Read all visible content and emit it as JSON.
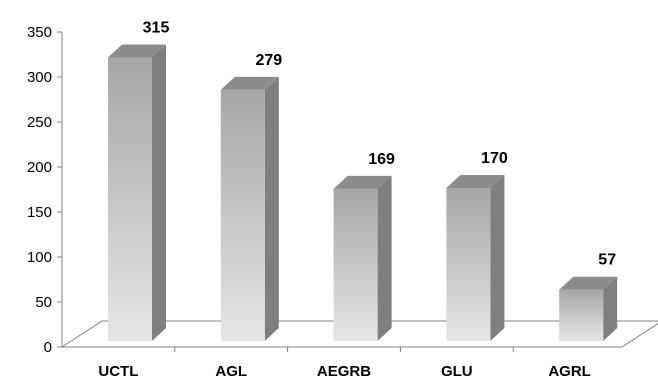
{
  "chart_data": {
    "type": "bar",
    "style": "3d-column",
    "categories": [
      "UCTL",
      "AGL",
      "AEGRB",
      "GLU",
      "AGRL"
    ],
    "values": [
      315,
      279,
      169,
      170,
      57
    ],
    "data_labels": [
      "315",
      "279",
      "169",
      "170",
      "57"
    ],
    "title": "",
    "xlabel": "",
    "ylabel": "",
    "ylim": [
      0,
      350
    ],
    "yticks": [
      "0",
      "50",
      "100",
      "150",
      "200",
      "250",
      "300",
      "350"
    ],
    "grid": false,
    "legend": "none",
    "colors": {
      "bar_front_light": "#e6e6e6",
      "bar_front_dark": "#a6a6a6",
      "bar_side": "#7f7f7f",
      "bar_top": "#8c8c8c",
      "floor": "#ffffff",
      "axis": "#808080"
    }
  }
}
